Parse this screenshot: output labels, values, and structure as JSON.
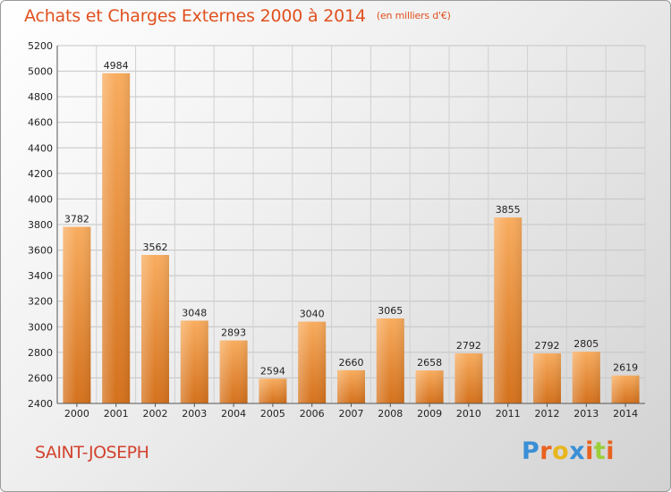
{
  "title": "Achats et Charges Externes 2000 à 2014",
  "unit": "(en milliers d'€)",
  "commune": "SAINT-JOSEPH",
  "logo": {
    "text": "Proxiti",
    "colors": [
      "#3a8fd6",
      "#e8611e",
      "#e8b61e",
      "#3a8fd6",
      "#e8611e",
      "#9bcf3a",
      "#e8611e"
    ]
  },
  "colors": {
    "title": "#e0501e",
    "bar_light": "#f7a85a",
    "bar_dark": "#d4711c",
    "grid": "#bdbdbd"
  },
  "chart_data": {
    "type": "bar",
    "title": "Achats et Charges Externes 2000 à 2014",
    "categories": [
      "2000",
      "2001",
      "2002",
      "2003",
      "2004",
      "2005",
      "2006",
      "2007",
      "2008",
      "2009",
      "2010",
      "2011",
      "2012",
      "2013",
      "2014"
    ],
    "values": [
      3782,
      4984,
      3562,
      3048,
      2893,
      2594,
      3040,
      2660,
      3065,
      2658,
      2792,
      3855,
      2792,
      2805,
      2619
    ],
    "ylim": [
      2400,
      5200
    ],
    "yticks": [
      2400,
      2600,
      2800,
      3000,
      3200,
      3400,
      3600,
      3800,
      4000,
      4200,
      4400,
      4600,
      4800,
      5000,
      5200
    ],
    "grid": true,
    "xlabel": "",
    "ylabel": ""
  }
}
